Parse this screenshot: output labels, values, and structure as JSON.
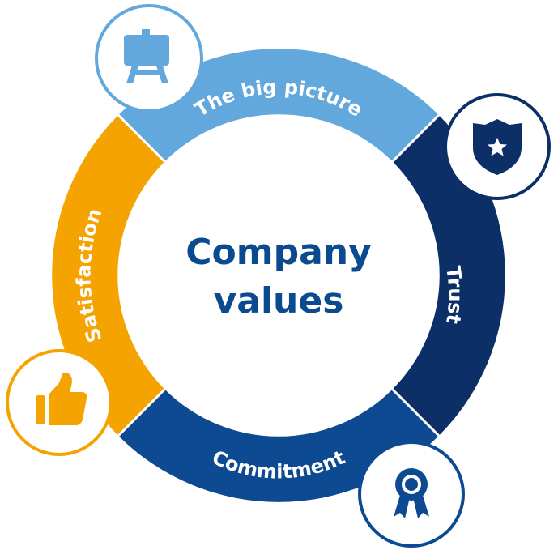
{
  "center": {
    "line1": "Company",
    "line2": "values",
    "color": "#0a4a8f"
  },
  "segments": [
    {
      "id": "big-picture",
      "label": "The big picture",
      "color": "#62a8dc",
      "icon": "easel-icon"
    },
    {
      "id": "trust",
      "label": "Trust",
      "color": "#0b2f66",
      "icon": "shield-star-icon"
    },
    {
      "id": "commitment",
      "label": "Commitment",
      "color": "#0d4a92",
      "icon": "award-ribbon-icon"
    },
    {
      "id": "satisfaction",
      "label": "Satisfaction",
      "color": "#f4a300",
      "icon": "thumbs-up-icon"
    }
  ]
}
